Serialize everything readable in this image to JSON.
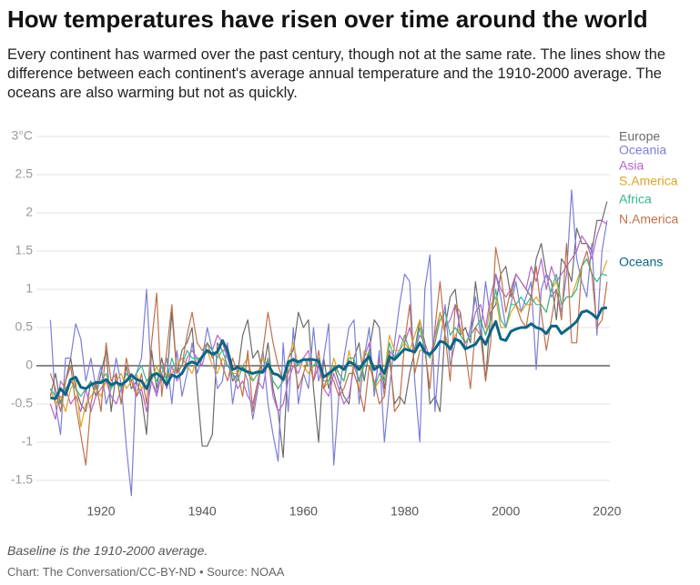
{
  "title": "How temperatures have risen over time around the world",
  "subtitle": "Every continent has warmed over the past century, though not at the same rate. The lines show the difference between each continent's average annual temperature and the 1910-2000 average. The oceans are also warming but not as quickly.",
  "note": "Baseline is the 1910-2000 average.",
  "source": "Chart: The Conversation/CC-BY-ND • Source: NOAA",
  "chart_data": {
    "type": "line",
    "x": [
      1910,
      1911,
      1912,
      1913,
      1914,
      1915,
      1916,
      1917,
      1918,
      1919,
      1920,
      1921,
      1922,
      1923,
      1924,
      1925,
      1926,
      1927,
      1928,
      1929,
      1930,
      1931,
      1932,
      1933,
      1934,
      1935,
      1936,
      1937,
      1938,
      1939,
      1940,
      1941,
      1942,
      1943,
      1944,
      1945,
      1946,
      1947,
      1948,
      1949,
      1950,
      1951,
      1952,
      1953,
      1954,
      1955,
      1956,
      1957,
      1958,
      1959,
      1960,
      1961,
      1962,
      1963,
      1964,
      1965,
      1966,
      1967,
      1968,
      1969,
      1970,
      1971,
      1972,
      1973,
      1974,
      1975,
      1976,
      1977,
      1978,
      1979,
      1980,
      1981,
      1982,
      1983,
      1984,
      1985,
      1986,
      1987,
      1988,
      1989,
      1990,
      1991,
      1992,
      1993,
      1994,
      1995,
      1996,
      1997,
      1998,
      1999,
      2000,
      2001,
      2002,
      2003,
      2004,
      2005,
      2006,
      2007,
      2008,
      2009,
      2010,
      2011,
      2012,
      2013,
      2014,
      2015,
      2016,
      2017,
      2018,
      2019,
      2020
    ],
    "xlim": [
      1907,
      2022
    ],
    "xticks": [
      1920,
      1940,
      1960,
      1980,
      2000,
      2020
    ],
    "ylim": [
      -1.75,
      3
    ],
    "yticks": [
      -1.5,
      -1,
      -0.5,
      0,
      0.5,
      1,
      1.5,
      2,
      2.5,
      {
        "value": 3,
        "label": "3°C"
      }
    ],
    "grid": true,
    "series": [
      {
        "name": "Europe",
        "color": "#6b6b6b",
        "values": [
          -0.4,
          -0.1,
          -0.5,
          -0.2,
          0.1,
          -0.3,
          -0.5,
          -0.6,
          -0.2,
          -0.4,
          -0.1,
          0.2,
          -0.6,
          -0.1,
          -0.5,
          0,
          -0.3,
          -0.2,
          -0.4,
          -0.9,
          0.2,
          -0.3,
          0.1,
          -0.2,
          0.7,
          -0.1,
          0.2,
          0.3,
          0.5,
          -0.3,
          -1.05,
          -1.05,
          -0.9,
          0.3,
          0.2,
          0.2,
          -0.2,
          -0.1,
          0.4,
          0.6,
          0.1,
          0.2,
          -0.1,
          0.3,
          -0.3,
          -0.6,
          -1.2,
          0.1,
          0.2,
          0.7,
          0.5,
          0.6,
          -0.3,
          -1,
          0.1,
          -0.3,
          0,
          -0.2,
          -0.4,
          -0.5,
          0.1,
          0.3,
          -0.2,
          0.2,
          0.6,
          0.5,
          -0.3,
          0.1,
          -0.5,
          -0.4,
          -0.5,
          -0.1,
          0.2,
          0.6,
          0.3,
          -0.5,
          -0.4,
          -0.6,
          0.5,
          0.9,
          1,
          0.4,
          0.5,
          0.3,
          1.1,
          0.6,
          -0.2,
          0.7,
          0.8,
          1.2,
          1.3,
          0.9,
          1.2,
          1.1,
          1,
          0.9,
          1.4,
          1.6,
          1.2,
          1.1,
          0.6,
          1.4,
          1.3,
          1.1,
          1.8,
          1.6,
          1.6,
          1.5,
          1.9,
          1.9,
          2.15
        ]
      },
      {
        "name": "Oceania",
        "color": "#7b7fd6",
        "values": [
          0.6,
          -0.5,
          -0.9,
          0.1,
          0.1,
          0.55,
          0.35,
          -0.2,
          0.1,
          -0.3,
          0,
          -0.5,
          -0.3,
          0.1,
          -0.25,
          -1.05,
          -1.7,
          -0.1,
          0.1,
          1.0,
          -0.2,
          -0.35,
          -0.1,
          0.1,
          -0.5,
          0.2,
          -0.4,
          -0.1,
          0.3,
          -0.1,
          0.1,
          0.5,
          0.2,
          -0.3,
          -0.2,
          0.3,
          -0.5,
          -0.1,
          0,
          -0.2,
          -0.7,
          -0.3,
          0.2,
          -0.5,
          -0.9,
          -1.25,
          0.3,
          -0.6,
          0.5,
          -0.5,
          -0.1,
          -0.3,
          0.5,
          -0.2,
          0.1,
          0.55,
          -1.3,
          -0.4,
          0.1,
          0.5,
          0.6,
          -0.5,
          0.1,
          0.5,
          -0.4,
          0.2,
          -1.0,
          -0.3,
          0.3,
          0.8,
          1.2,
          1.1,
          -0.2,
          -1,
          1.0,
          1.45,
          -0.6,
          0.3,
          0.8,
          0,
          0.3,
          0.7,
          0.2,
          0.5,
          0.9,
          0.4,
          1.1,
          0.6,
          1.2,
          0.9,
          0.5,
          0.8,
          1.1,
          0.7,
          0.9,
          1.1,
          -0.05,
          1.0,
          1.2,
          0.9,
          1.0,
          0.7,
          1.2,
          2.3,
          1.4,
          1.1,
          0.9,
          1.6,
          0.4,
          1.5,
          1.9
        ]
      },
      {
        "name": "Asia",
        "color": "#b565c9",
        "values": [
          -0.5,
          -0.7,
          -0.2,
          -0.3,
          -0.5,
          -0.4,
          -0.6,
          -0.3,
          -0.6,
          -0.4,
          -0.3,
          -0.2,
          -0.4,
          -0.5,
          -0.3,
          -0.2,
          -0.1,
          -0.4,
          -0.3,
          -0.6,
          -0.2,
          -0.4,
          -0.1,
          -0.3,
          0,
          -0.2,
          -0.1,
          0.1,
          0.2,
          0.1,
          0,
          0.3,
          0.2,
          0.4,
          0.3,
          0.1,
          -0.1,
          -0.3,
          -0.2,
          -0.4,
          -0.5,
          -0.2,
          -0.3,
          0.1,
          -0.4,
          -0.6,
          -0.5,
          -0.2,
          0,
          -0.1,
          0.1,
          0.2,
          -0.2,
          0,
          -0.3,
          -0.4,
          -0.1,
          -0.3,
          -0.5,
          -0.4,
          0,
          -0.2,
          0.1,
          0.3,
          -0.3,
          0.1,
          -0.4,
          0.2,
          0.1,
          0.4,
          0.3,
          0.5,
          0.2,
          0.4,
          0.3,
          0.1,
          0.4,
          0.7,
          0.5,
          0.6,
          0.8,
          0.5,
          0.3,
          0.4,
          0.7,
          0.8,
          0.5,
          0.9,
          1.2,
          1.0,
          0.9,
          1.0,
          1.2,
          1.1,
          1.0,
          1.3,
          1.1,
          1.4,
          1.0,
          1.3,
          1.1,
          1.2,
          1.3,
          1.4,
          1.5,
          1.7,
          1.6,
          1.4,
          1.7,
          1.9,
          1.85
        ]
      },
      {
        "name": "S.America",
        "color": "#e0a326",
        "values": [
          -0.3,
          -0.5,
          -0.4,
          -0.6,
          -0.3,
          -0.2,
          -0.8,
          -0.5,
          -0.4,
          -0.3,
          -0.4,
          -0.2,
          -0.3,
          -0.2,
          -0.1,
          -0.3,
          -0.2,
          -0.1,
          -0.3,
          -0.2,
          -0.2,
          0,
          -0.2,
          -0.1,
          -0.1,
          0,
          0.1,
          0,
          -0.1,
          0.1,
          0.1,
          0.2,
          0,
          -0.1,
          0.1,
          0,
          -0.1,
          -0.1,
          0,
          0.1,
          -0.2,
          -0.1,
          0.1,
          0,
          -0.2,
          -0.3,
          -0.2,
          0.1,
          0.3,
          0,
          0,
          -0.1,
          0,
          0.1,
          -0.3,
          -0.2,
          0.1,
          -0.1,
          -0.2,
          0.2,
          -0.1,
          -0.3,
          0.2,
          0.1,
          -0.3,
          -0.2,
          -0.1,
          0.4,
          0.2,
          0.2,
          0.3,
          0.2,
          0.4,
          0.6,
          0.2,
          0.1,
          0.3,
          0.7,
          0.4,
          0.2,
          0.4,
          0.5,
          0.3,
          0.4,
          0.5,
          0.6,
          0.4,
          0.8,
          0.9,
          0.5,
          0.5,
          0.7,
          0.8,
          0.7,
          0.8,
          0.8,
          0.9,
          0.8,
          0.7,
          1.0,
          1.1,
          0.8,
          0.9,
          0.9,
          1.1,
          1.3,
          1.4,
          1.2,
          1.1,
          1.2,
          1.38
        ]
      },
      {
        "name": "Africa",
        "color": "#3bb58f",
        "values": [
          -0.3,
          -0.4,
          -0.5,
          -0.3,
          -0.2,
          -0.3,
          -0.4,
          -0.3,
          -0.2,
          -0.3,
          -0.2,
          -0.1,
          -0.3,
          -0.2,
          -0.3,
          -0.1,
          -0.2,
          -0.1,
          0,
          -0.2,
          -0.1,
          -0.2,
          0,
          -0.2,
          0.1,
          -0.1,
          0,
          0.2,
          0.1,
          0.1,
          0.1,
          0.3,
          0.2,
          0.1,
          0.2,
          0,
          -0.1,
          -0.2,
          0,
          -0.1,
          -0.2,
          -0.1,
          -0.1,
          0.1,
          -0.2,
          -0.3,
          -0.2,
          0,
          0.1,
          0,
          0.1,
          0,
          0,
          0.1,
          -0.2,
          -0.2,
          0,
          -0.1,
          -0.2,
          0.1,
          0.1,
          -0.2,
          0,
          0.2,
          -0.3,
          -0.1,
          -0.2,
          0.3,
          0.1,
          0.2,
          0.4,
          0.2,
          0.2,
          0.5,
          0.2,
          0.1,
          0.3,
          0.6,
          0.7,
          0.4,
          0.5,
          0.4,
          0.3,
          0.4,
          0.5,
          0.6,
          0.4,
          0.6,
          1.0,
          0.6,
          0.5,
          0.8,
          0.8,
          0.9,
          0.8,
          0.9,
          0.8,
          0.8,
          0.7,
          1.0,
          1.2,
          0.8,
          0.9,
          0.9,
          1.0,
          1.3,
          1.4,
          1.2,
          1.1,
          1.2,
          1.18
        ]
      },
      {
        "name": "N.America",
        "color": "#c0704a",
        "values": [
          -0.1,
          -0.3,
          -0.6,
          -0.2,
          0,
          -0.5,
          -0.9,
          -1.3,
          -0.5,
          -0.2,
          -0.6,
          0.3,
          -0.2,
          -0.1,
          -0.5,
          0.1,
          -0.2,
          -0.4,
          -0.1,
          -0.5,
          0.3,
          0.95,
          -0.4,
          0.2,
          0.8,
          -0.1,
          0,
          0.4,
          0.7,
          0.3,
          0.2,
          0.3,
          0.1,
          0.2,
          0,
          -0.2,
          0.1,
          -0.1,
          -0.4,
          0.2,
          -0.6,
          -0.2,
          0.2,
          0.7,
          0.3,
          0,
          -0.2,
          -0.1,
          0.1,
          -0.3,
          -0.1,
          0.1,
          -0.2,
          0.2,
          -0.3,
          -0.1,
          -0.2,
          -0.4,
          -0.3,
          -0.1,
          -0.1,
          -0.3,
          -0.6,
          0,
          -0.2,
          -0.5,
          -0.4,
          0.2,
          -0.6,
          -0.5,
          0.3,
          0.8,
          -0.1,
          0.2,
          0.2,
          -0.3,
          0.5,
          1.1,
          0.4,
          -0.2,
          0.8,
          0.7,
          0.2,
          -0.3,
          0.5,
          0.4,
          -0.2,
          0.3,
          1.55,
          1.2,
          0.7,
          1.0,
          0.8,
          0.6,
          0.5,
          0.9,
          1.3,
          0.7,
          0.2,
          0.6,
          1.0,
          0.6,
          1.6,
          0.3,
          0.3,
          1.3,
          1.5,
          1.2,
          0.5,
          0.6,
          1.1
        ]
      },
      {
        "name": "Oceans",
        "color": "#0e6584",
        "values": [
          -0.42,
          -0.43,
          -0.3,
          -0.38,
          -0.18,
          -0.15,
          -0.28,
          -0.3,
          -0.25,
          -0.22,
          -0.22,
          -0.18,
          -0.25,
          -0.22,
          -0.25,
          -0.2,
          -0.12,
          -0.18,
          -0.2,
          -0.3,
          -0.13,
          -0.1,
          -0.15,
          -0.25,
          -0.12,
          -0.15,
          -0.1,
          0.02,
          0.05,
          0.02,
          0.12,
          0.2,
          0.15,
          0.18,
          0.33,
          0.2,
          -0.05,
          -0.02,
          -0.05,
          -0.08,
          -0.1,
          -0.08,
          -0.08,
          0.02,
          -0.1,
          -0.12,
          -0.18,
          0.05,
          0.08,
          0.05,
          0.08,
          0.08,
          0.08,
          0.06,
          -0.15,
          -0.1,
          -0.05,
          0,
          -0.05,
          0.05,
          0.02,
          -0.05,
          0.05,
          0.12,
          -0.05,
          0,
          -0.1,
          0.12,
          0.08,
          0.15,
          0.22,
          0.2,
          0.18,
          0.3,
          0.18,
          0.15,
          0.22,
          0.32,
          0.3,
          0.22,
          0.35,
          0.32,
          0.22,
          0.25,
          0.28,
          0.38,
          0.28,
          0.45,
          0.58,
          0.35,
          0.33,
          0.45,
          0.48,
          0.5,
          0.5,
          0.55,
          0.5,
          0.48,
          0.42,
          0.52,
          0.52,
          0.42,
          0.47,
          0.52,
          0.58,
          0.7,
          0.72,
          0.68,
          0.62,
          0.75,
          0.76
        ]
      }
    ]
  }
}
